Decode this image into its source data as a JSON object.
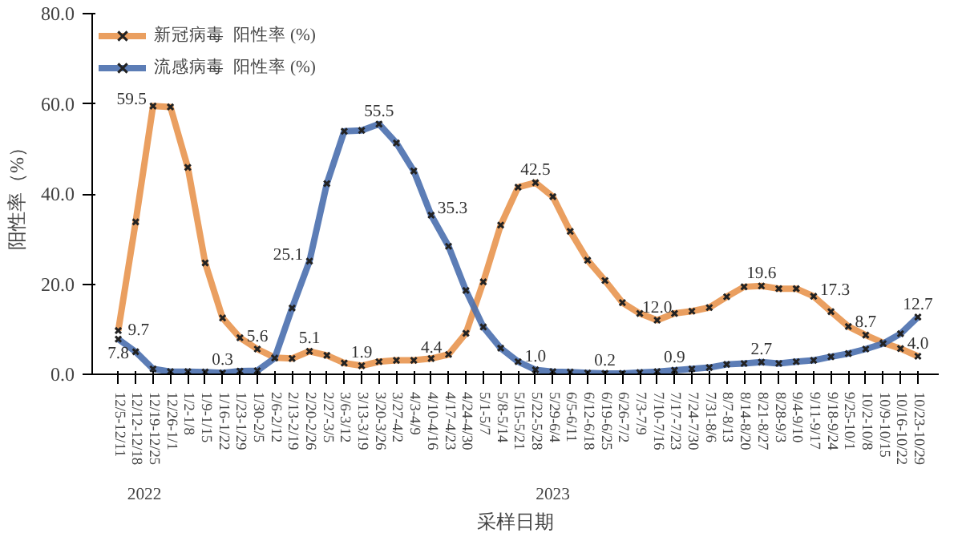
{
  "chart_data": {
    "type": "line",
    "xlabel": "采样日期",
    "ylabel": "阳性率（%）",
    "categories": [
      "12/5-12/11",
      "12/12-12/18",
      "12/19-12/25",
      "12/26-1/1",
      "1/2-1/8",
      "1/9-1/15",
      "1/16-1/22",
      "1/23-1/29",
      "1/30-2/5",
      "2/6-2/12",
      "2/13-2/19",
      "2/20-2/26",
      "2/27-3/5",
      "3/6-3/12",
      "3/13-3/19",
      "3/20-3/26",
      "3/27-4/2",
      "4/3-4/9",
      "4/10-4/16",
      "4/17-4/23",
      "4/24-4/30",
      "5/1-5/7",
      "5/8-5/14",
      "5/15-5/21",
      "5/22-5/28",
      "5/29-6/4",
      "6/5-6/11",
      "6/12-6/18",
      "6/19-6/25",
      "6/26-7/2",
      "7/3-7/9",
      "7/10-7/16",
      "7/17-7/23",
      "7/24-7/30",
      "7/31-8/6",
      "8/7-8/13",
      "8/14-8/20",
      "8/21-8/27",
      "8/28-9/3",
      "9/4-9/10",
      "9/11-9/17",
      "9/18-9/24",
      "9/25-10/1",
      "10/2-10/8",
      "10/9-10/15",
      "10/16-10/22",
      "10/23-10/29"
    ],
    "series": [
      {
        "name": "新冠病毒  阳性率 (%)",
        "color": "#e8954f",
        "values": [
          9.7,
          33.8,
          59.5,
          59.3,
          45.9,
          24.7,
          12.5,
          8.1,
          5.6,
          3.7,
          3.5,
          5.1,
          4.2,
          2.5,
          1.9,
          2.8,
          3.1,
          3.1,
          3.5,
          4.4,
          9.1,
          20.5,
          33.1,
          41.5,
          42.5,
          39.4,
          31.7,
          25.3,
          20.8,
          15.9,
          13.5,
          12.0,
          13.5,
          14.0,
          14.8,
          17.2,
          19.4,
          19.6,
          19.0,
          19.0,
          17.3,
          13.9,
          10.6,
          8.7,
          7.0,
          5.7,
          4.0
        ],
        "value_labels": [
          "9.7",
          null,
          "59.5",
          null,
          null,
          null,
          null,
          null,
          "5.6",
          null,
          null,
          "5.1",
          null,
          null,
          "1.9",
          null,
          null,
          null,
          null,
          "4.4",
          null,
          null,
          null,
          null,
          "42.5",
          null,
          null,
          null,
          null,
          null,
          null,
          "12.0",
          null,
          null,
          null,
          null,
          null,
          "19.6",
          null,
          null,
          "17.3",
          null,
          null,
          "8.7",
          null,
          null,
          "4.0"
        ]
      },
      {
        "name": "流感病毒  阳性率 (%)",
        "color": "#4a6fae",
        "values": [
          7.8,
          5.0,
          1.2,
          0.6,
          0.6,
          0.5,
          0.3,
          0.7,
          0.8,
          3.6,
          14.7,
          25.1,
          42.3,
          53.9,
          54.1,
          55.5,
          51.3,
          45.1,
          35.3,
          28.4,
          18.6,
          10.5,
          5.8,
          2.8,
          1.0,
          0.6,
          0.5,
          0.3,
          0.2,
          0.2,
          0.4,
          0.6,
          0.9,
          1.2,
          1.5,
          2.2,
          2.4,
          2.7,
          2.4,
          2.8,
          3.1,
          3.9,
          4.6,
          5.6,
          6.8,
          9.0,
          12.7
        ],
        "value_labels": [
          "7.8",
          null,
          null,
          null,
          null,
          null,
          "0.3",
          null,
          null,
          null,
          null,
          "25.1",
          null,
          null,
          null,
          "55.5",
          null,
          null,
          "35.3",
          null,
          null,
          null,
          null,
          null,
          "1.0",
          null,
          null,
          null,
          "0.2",
          null,
          null,
          null,
          "0.9",
          null,
          null,
          null,
          null,
          "2.7",
          null,
          null,
          null,
          null,
          null,
          null,
          null,
          null,
          "12.7"
        ]
      }
    ],
    "ylim": [
      0,
      80
    ],
    "yticks": [
      {
        "value": 0,
        "label": "0.0"
      },
      {
        "value": 20,
        "label": "20.0"
      },
      {
        "value": 40,
        "label": "40.0"
      },
      {
        "value": 60,
        "label": "60.0"
      },
      {
        "value": 80,
        "label": "80.0"
      }
    ],
    "annotations": [
      "2022",
      "2023"
    ],
    "marker": "cross",
    "line_style": "solid",
    "legend": "top left",
    "grid": false
  }
}
